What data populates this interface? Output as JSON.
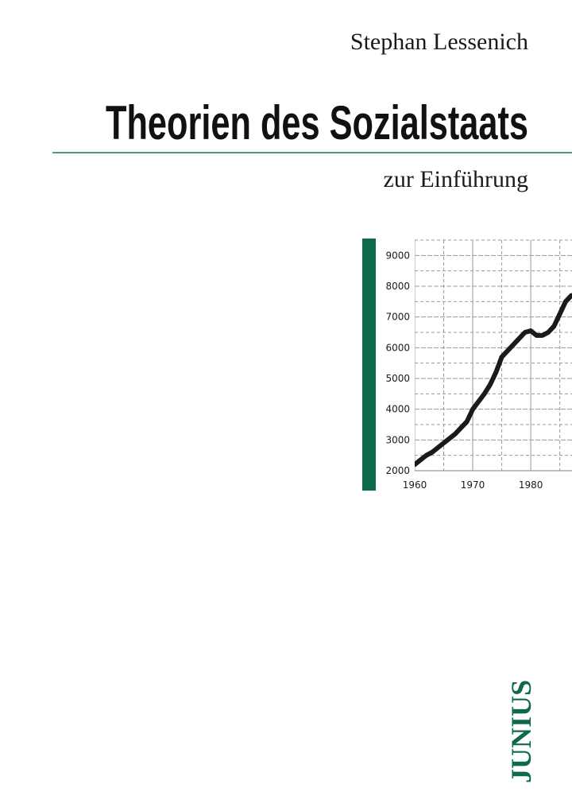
{
  "author": "Stephan Lessenich",
  "title": "Theorien des Sozialstaats",
  "subtitle": "zur Einführung",
  "publisher": "JUNIUS",
  "chart_data": {
    "type": "line",
    "x": [
      1960,
      1962,
      1963,
      1965,
      1967,
      1969,
      1970,
      1972,
      1973,
      1974,
      1975,
      1976,
      1977,
      1978,
      1979,
      1980,
      1981,
      1982,
      1983,
      1984,
      1985,
      1986,
      1987
    ],
    "series": [
      {
        "color": "#1a1a1a",
        "values": [
          2200,
          2500,
          2600,
          2900,
          3200,
          3600,
          4000,
          4500,
          4800,
          5200,
          5700,
          5900,
          6100,
          6300,
          6500,
          6550,
          6400,
          6400,
          6500,
          6700,
          7100,
          7500,
          7700
        ]
      }
    ],
    "xlim": [
      1960,
      1987.1
    ],
    "ylim": [
      2000,
      9500
    ],
    "xticks": [
      1960,
      1970,
      1980
    ],
    "yticks": [
      2000,
      3000,
      4000,
      5000,
      6000,
      7000,
      8000,
      9000
    ],
    "grid": true
  }
}
